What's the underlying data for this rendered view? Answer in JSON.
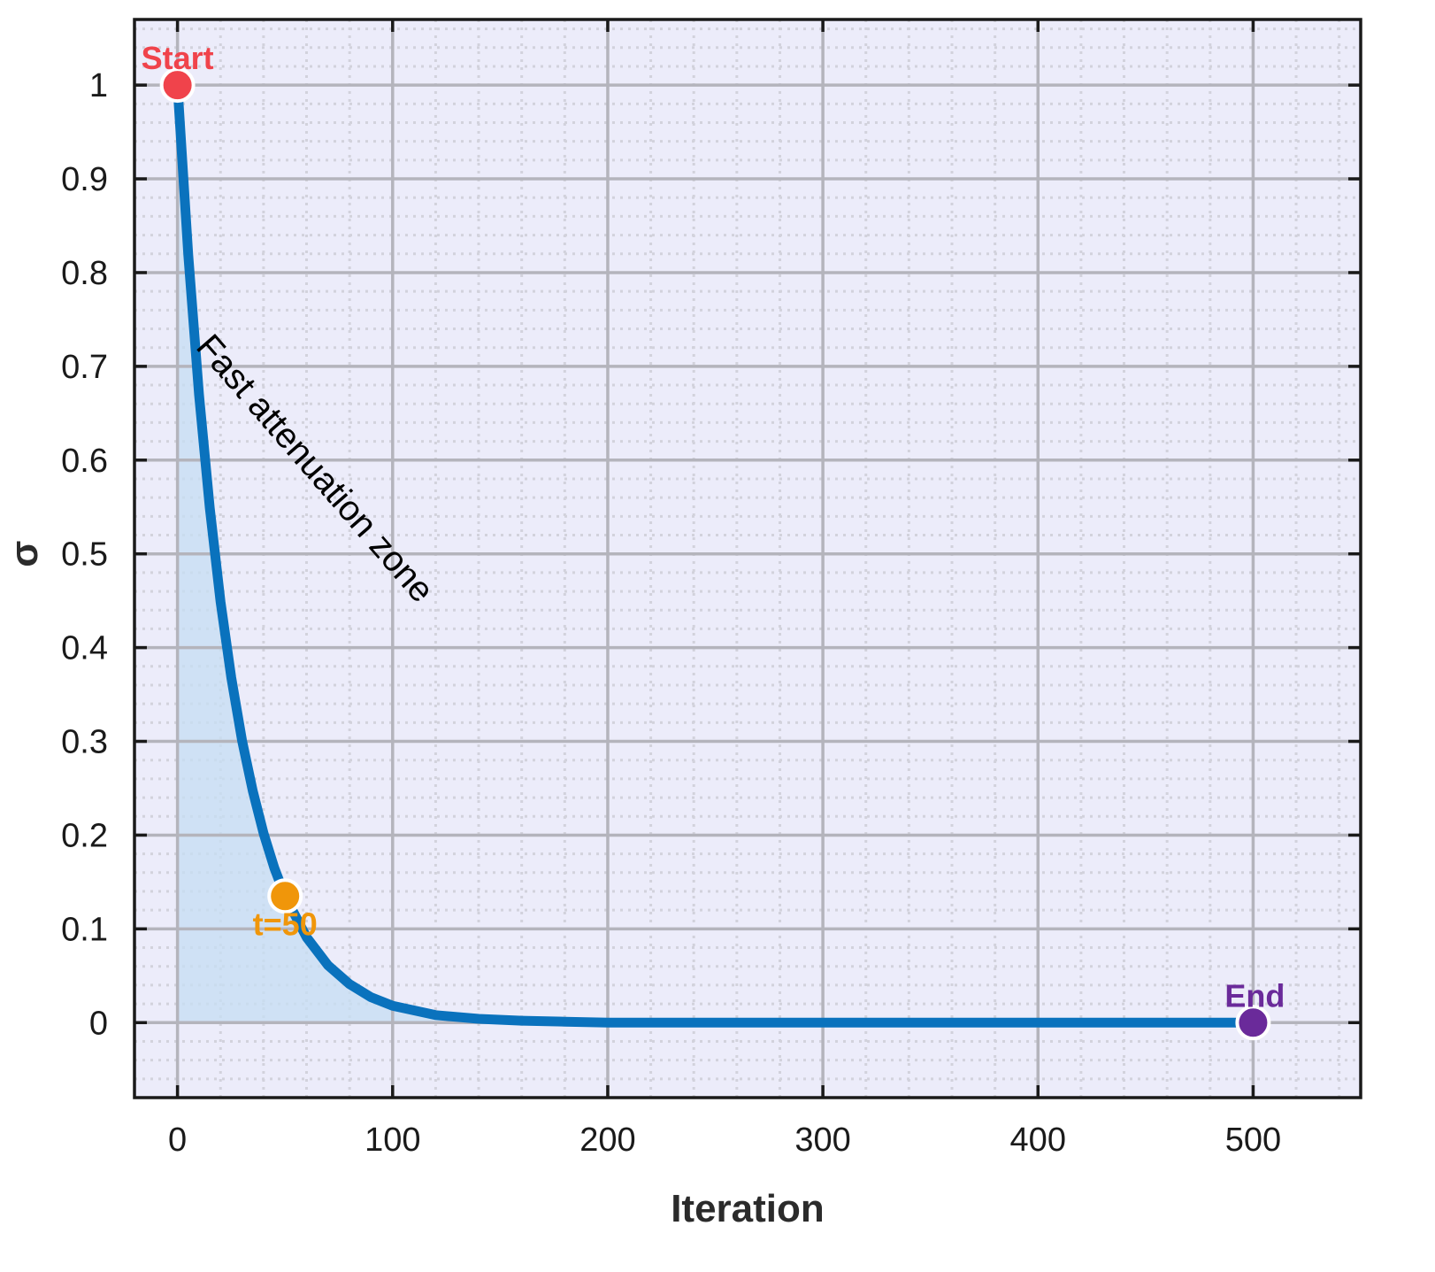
{
  "chart_data": {
    "type": "line",
    "title": "",
    "xlabel": "Iteration",
    "ylabel": "σ",
    "xlim": [
      -20,
      550
    ],
    "ylim": [
      -0.08,
      1.07
    ],
    "xticks": [
      0,
      100,
      200,
      300,
      400,
      500
    ],
    "yticks": [
      0,
      0.1,
      0.2,
      0.3,
      0.4,
      0.5,
      0.6,
      0.7,
      0.8,
      0.9,
      1
    ],
    "grid": true,
    "legend": "none",
    "series": [
      {
        "color": "#0a72bd",
        "x": [
          0,
          5,
          10,
          15,
          20,
          25,
          30,
          35,
          40,
          45,
          50,
          60,
          70,
          80,
          90,
          100,
          120,
          140,
          160,
          180,
          200,
          250,
          300,
          350,
          400,
          450,
          500
        ],
        "values": [
          1.0,
          0.819,
          0.67,
          0.549,
          0.449,
          0.368,
          0.301,
          0.247,
          0.202,
          0.165,
          0.135,
          0.091,
          0.061,
          0.041,
          0.027,
          0.018,
          0.008,
          0.004,
          0.002,
          0.001,
          0.0,
          0.0,
          0.0,
          0.0,
          0.0,
          0.0,
          0.0
        ]
      }
    ],
    "markers": [
      {
        "label": "Start",
        "x": 0,
        "y": 1.0,
        "color": "#f0434b"
      },
      {
        "label": "t=50",
        "x": 50,
        "y": 0.135,
        "color": "#f0960a"
      },
      {
        "label": "End",
        "x": 500,
        "y": 0.0,
        "color": "#6a2a9a"
      }
    ],
    "annotations": [
      {
        "text": "Fast attenuation zone",
        "x": 8,
        "y": 0.72
      }
    ],
    "colors": {
      "plot_background": "#ececfa",
      "shaded_area": "#c6def3",
      "line": "#0a72bd"
    }
  }
}
